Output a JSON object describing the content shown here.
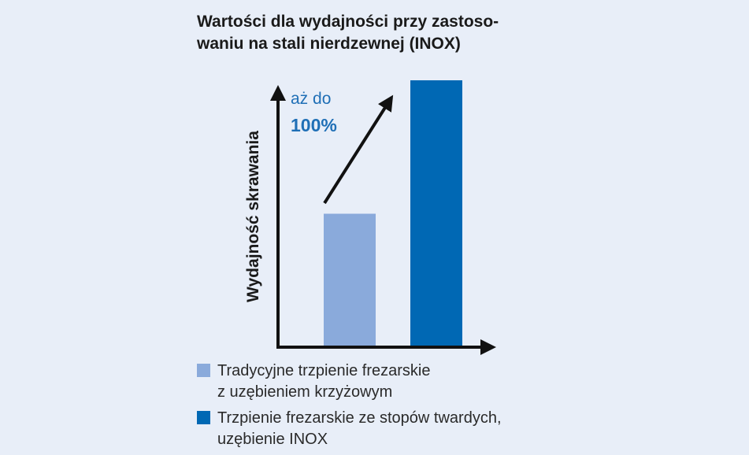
{
  "chart_data": {
    "type": "bar",
    "title_lines": [
      "Wartości dla wydajności przy zastoso-",
      "waniu na stali nierdzewnej (INOX)"
    ],
    "ylabel": "Wydajność skrawania",
    "annotation": {
      "prefix": "aż do",
      "value": "100%"
    },
    "categories": [
      "Tradycyjne trzpienie frezarskie z uzębieniem krzyżowym",
      "Trzpienie frezarskie ze stopów twardych, uzębienie INOX"
    ],
    "values": [
      50,
      100
    ],
    "ylim": [
      0,
      100
    ],
    "grid": false,
    "legend_position": "bottom-left",
    "legend": [
      {
        "lines": [
          "Tradycyjne trzpienie frezarskie",
          "z uzębieniem krzyżowym"
        ],
        "color": "#8aaadb"
      },
      {
        "lines": [
          "Trzpienie frezarskie ze stopów twardych,",
          "uzębienie INOX"
        ],
        "color": "#0068b4"
      }
    ],
    "axis_color": "#111111",
    "arrow_color": "#111111"
  }
}
